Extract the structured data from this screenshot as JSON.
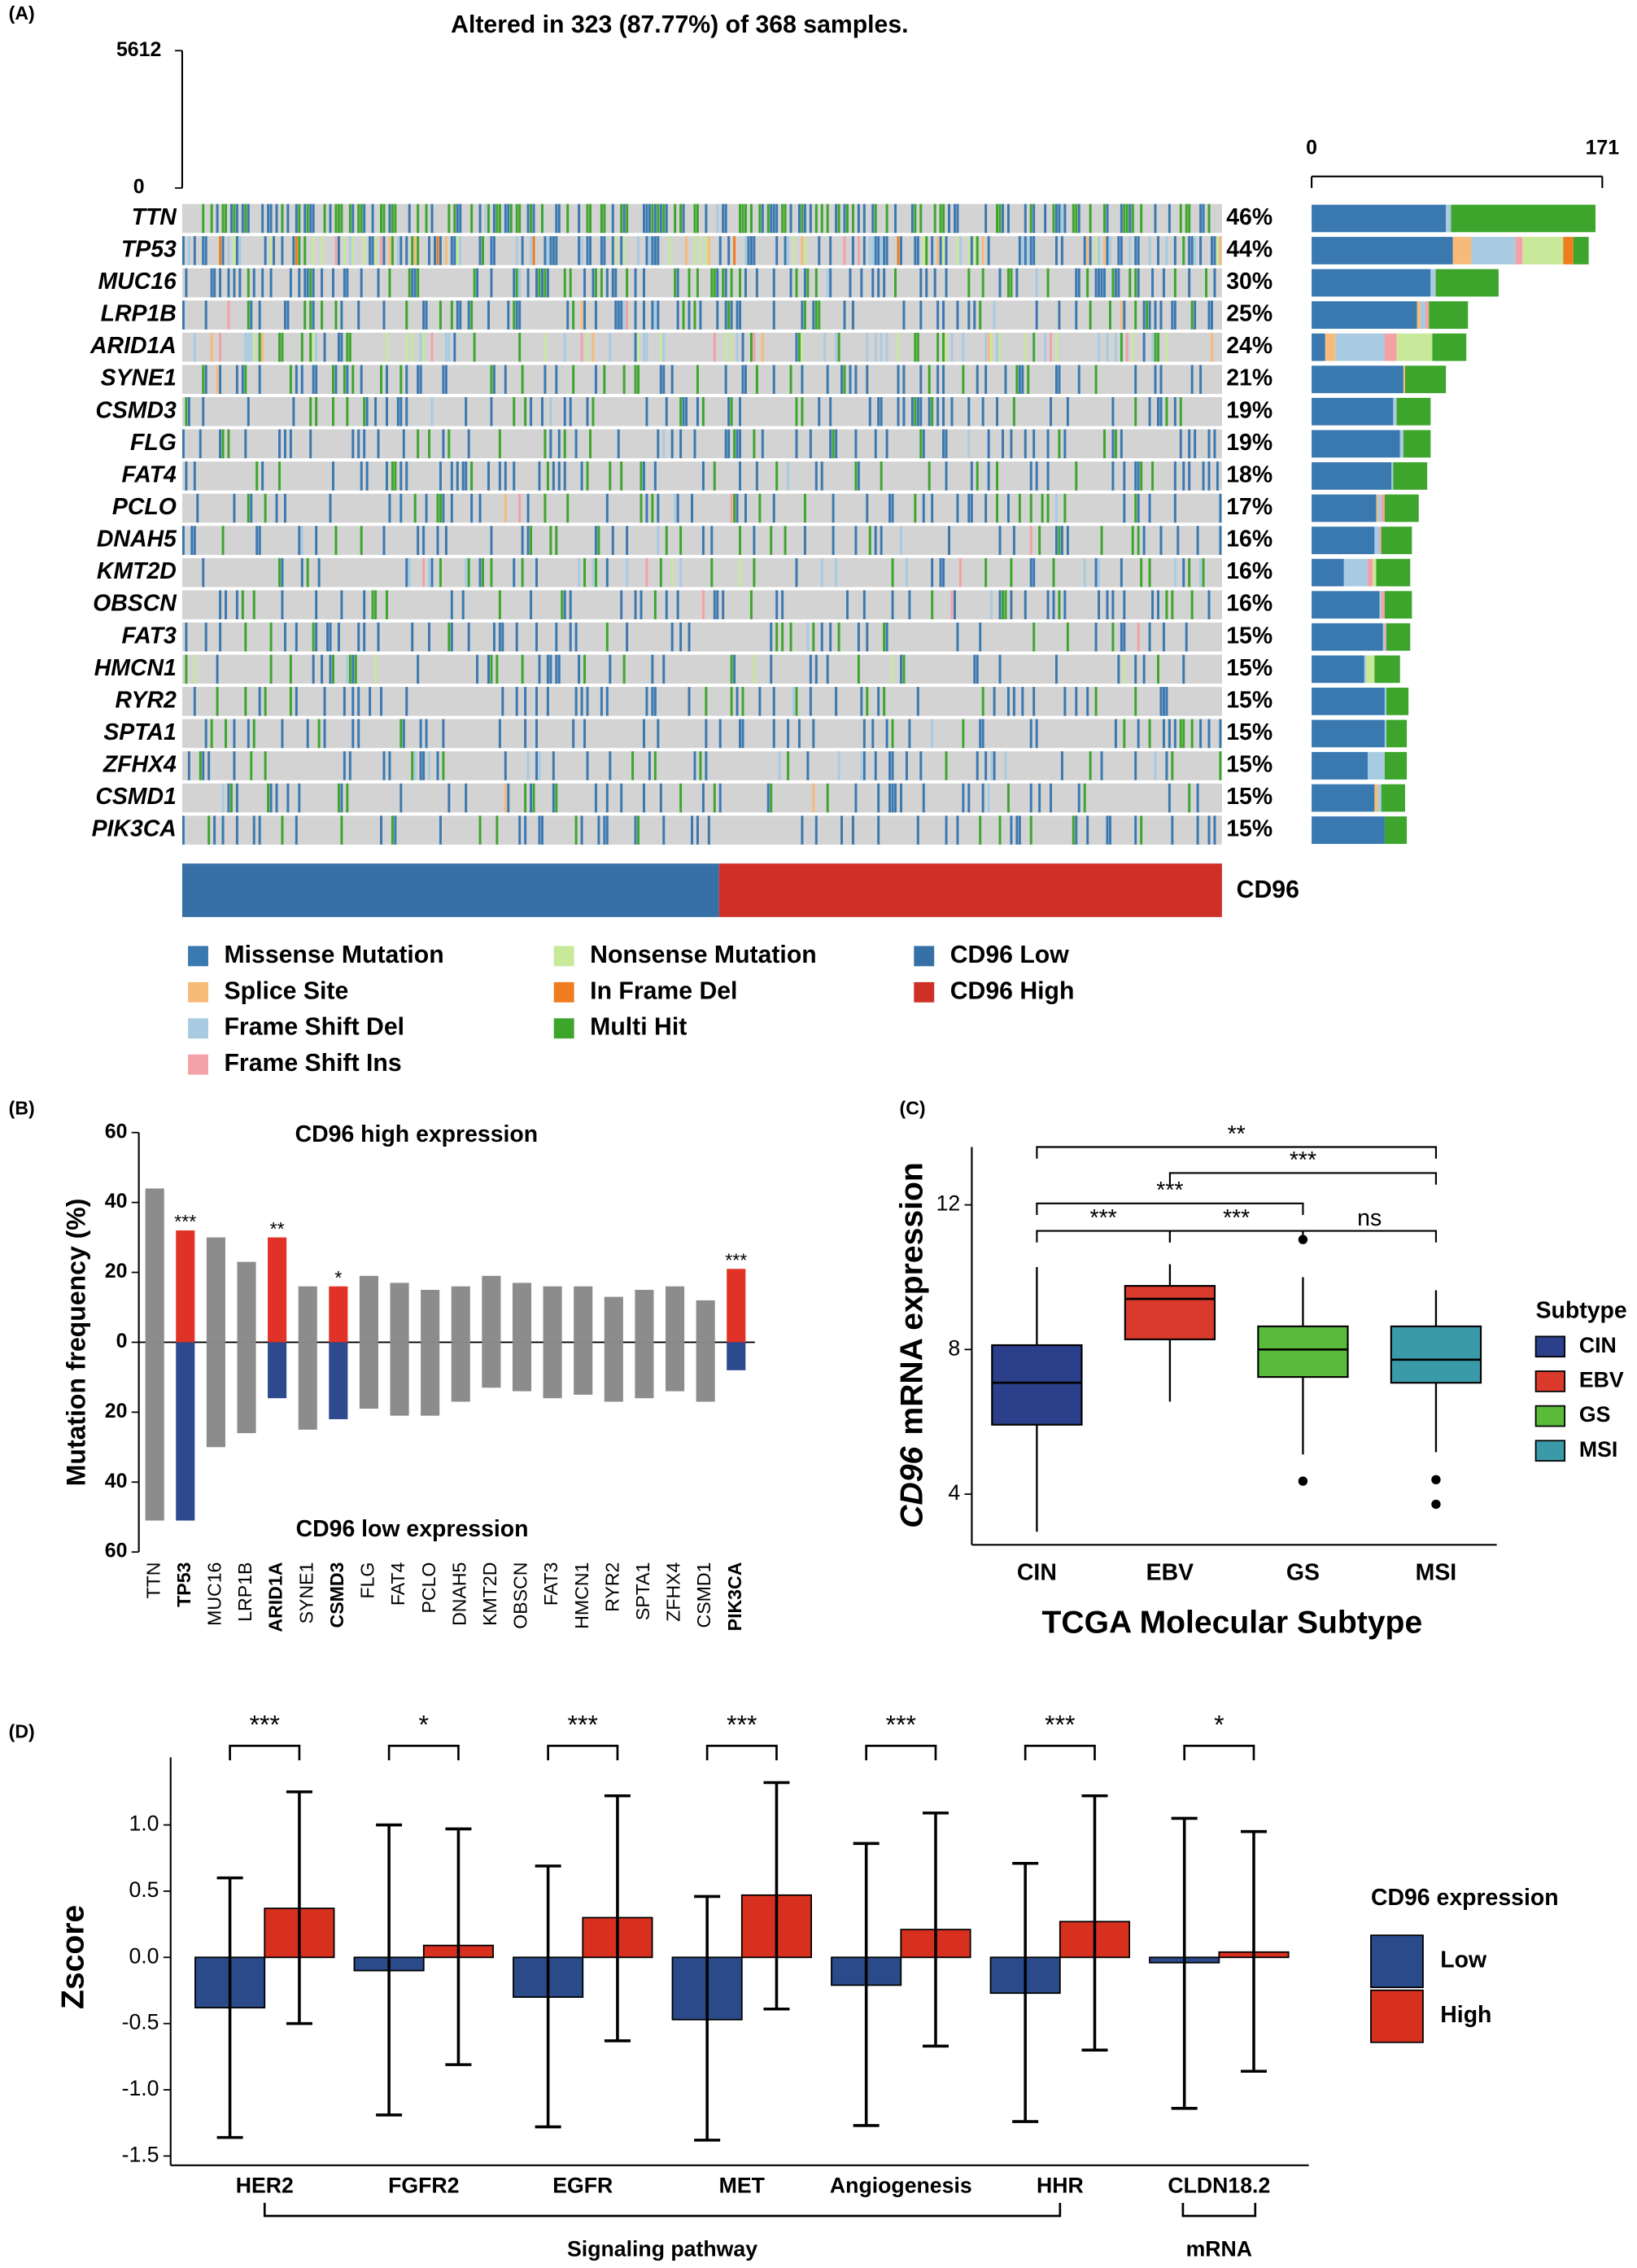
{
  "chart_data": [
    {
      "panel": "(A)",
      "type": "oncoplot",
      "title": "Altered in 323 (87.77%) of 368 samples.",
      "genes": [
        "TTN",
        "TP53",
        "MUC16",
        "LRP1B",
        "ARID1A",
        "SYNE1",
        "CSMD3",
        "FLG",
        "FAT4",
        "PCLO",
        "DNAH5",
        "KMT2D",
        "OBSCN",
        "FAT3",
        "HMCN1",
        "RYR2",
        "SPTA1",
        "ZFHX4",
        "CSMD1",
        "PIK3CA"
      ],
      "values": [
        46,
        44,
        30,
        25,
        24,
        21,
        19,
        19,
        18,
        17,
        16,
        16,
        16,
        15,
        15,
        15,
        15,
        15,
        15,
        15
      ],
      "value_labels": [
        "46%",
        "44%",
        "30%",
        "25%",
        "24%",
        "21%",
        "19%",
        "19%",
        "18%",
        "17%",
        "16%",
        "16%",
        "16%",
        "15%",
        "15%",
        "15%",
        "15%",
        "15%",
        "15%",
        "15%"
      ],
      "tmb_ylim": [
        0,
        5612
      ],
      "tmb_yticks": [
        0,
        5612
      ],
      "xlim": [
        0,
        171
      ],
      "xticks": [
        0,
        171
      ],
      "series": [
        {
          "name": "Missense Mutation",
          "color": "#3a78b0",
          "values": [
            79,
            83,
            70,
            62,
            8,
            54,
            48,
            52,
            47,
            38,
            37,
            19,
            40,
            42,
            31,
            43,
            43,
            33,
            37,
            43
          ]
        },
        {
          "name": "Splice Site",
          "color": "#f6bb78",
          "values": [
            0,
            11,
            0,
            2,
            6,
            1,
            0,
            0,
            0,
            1,
            0,
            0,
            0,
            0,
            0,
            0,
            0,
            0,
            2,
            0
          ]
        },
        {
          "name": "Frame Shift Del",
          "color": "#a8cbe2",
          "values": [
            3,
            26,
            3,
            3,
            29,
            0,
            2,
            2,
            1,
            2,
            3,
            14,
            1,
            1,
            1,
            1,
            1,
            10,
            2,
            0
          ]
        },
        {
          "name": "Frame Shift Ins",
          "color": "#f3a1a6",
          "values": [
            0,
            4,
            0,
            2,
            7,
            0,
            0,
            0,
            0,
            2,
            1,
            3,
            2,
            1,
            0,
            0,
            0,
            0,
            0,
            0
          ]
        },
        {
          "name": "Nonsense Mutation",
          "color": "#c8e89a",
          "values": [
            0,
            24,
            0,
            0,
            21,
            0,
            0,
            0,
            0,
            0,
            0,
            2,
            0,
            0,
            5,
            0,
            0,
            0,
            0,
            0
          ]
        },
        {
          "name": "In Frame Del",
          "color": "#ef7d20",
          "values": [
            0,
            6,
            0,
            0,
            0,
            0,
            0,
            0,
            0,
            0,
            0,
            0,
            0,
            0,
            0,
            0,
            0,
            0,
            0,
            0
          ]
        },
        {
          "name": "Multi Hit",
          "color": "#3da52c",
          "values": [
            85,
            9,
            37,
            23,
            20,
            24,
            20,
            16,
            20,
            20,
            18,
            20,
            16,
            14,
            15,
            13,
            12,
            13,
            14,
            13
          ]
        }
      ],
      "annotation": {
        "label": "CD96",
        "groups": [
          {
            "name": "CD96 Low",
            "color": "#3670a7",
            "n": 190
          },
          {
            "name": "CD96 High",
            "color": "#ce3027",
            "n": 178
          }
        ]
      }
    },
    {
      "panel": "(B)",
      "type": "mirror_bar",
      "y_label": "Mutation frequency (%)",
      "categories": [
        "TTN",
        "TP53",
        "MUC16",
        "LRP1B",
        "ARID1A",
        "SYNE1",
        "CSMD3",
        "FLG",
        "FAT4",
        "PCLO",
        "DNAH5",
        "KMT2D",
        "OBSCN",
        "FAT3",
        "HMCN1",
        "RYR2",
        "SPTA1",
        "ZFHX4",
        "CSMD1",
        "PIK3CA"
      ],
      "series": [
        {
          "name": "CD96 high expression",
          "color": "#e03226",
          "values": [
            44,
            32,
            30,
            23,
            30,
            16,
            16,
            19,
            17,
            15,
            16,
            19,
            17,
            16,
            16,
            13,
            15,
            16,
            12,
            21
          ]
        },
        {
          "name": "CD96 low expression",
          "color": "#2d4a8f",
          "values": [
            -51,
            -51,
            -30,
            -26,
            -16,
            -25,
            -22,
            -19,
            -21,
            -21,
            -17,
            -13,
            -14,
            -16,
            -15,
            -17,
            -16,
            -14,
            -17,
            -8
          ]
        }
      ],
      "other_color": "#8c8c8c",
      "significance": [
        null,
        "***",
        null,
        null,
        "**",
        null,
        "*",
        null,
        null,
        null,
        null,
        null,
        null,
        null,
        null,
        null,
        null,
        null,
        null,
        "***"
      ],
      "ylim": [
        -60,
        60
      ],
      "yticks": [
        60,
        40,
        20,
        0,
        {
          "value": -20,
          "label": "20"
        },
        {
          "value": -40,
          "label": "40"
        },
        {
          "value": -60,
          "label": "60"
        }
      ]
    },
    {
      "panel": "(C)",
      "type": "box",
      "y_label": [
        "CD96",
        "mRNA expression"
      ],
      "x_label": "TCGA Molecular Subtype",
      "categories": [
        "CIN",
        "EBV",
        "GS",
        "MSI"
      ],
      "colors": [
        "#2b3f8a",
        "#d93a2b",
        "#5aba3a",
        "#3a9aa8"
      ],
      "boxes": [
        {
          "low": 2.96,
          "q1": 5.92,
          "median": 7.08,
          "q3": 8.12,
          "high": 10.28,
          "outliers": []
        },
        {
          "low": 6.56,
          "q1": 8.28,
          "median": 9.4,
          "q3": 9.76,
          "high": 10.36,
          "outliers": []
        },
        {
          "low": 5.1,
          "q1": 7.24,
          "median": 8.0,
          "q3": 8.64,
          "high": 10.0,
          "outliers": [
            11.04,
            4.36
          ]
        },
        {
          "low": 5.16,
          "q1": 7.08,
          "median": 7.72,
          "q3": 8.64,
          "high": 9.64,
          "outliers": [
            4.4,
            3.72
          ]
        }
      ],
      "comparisons": [
        {
          "from": 0,
          "to": 3,
          "label": "**"
        },
        {
          "from": 1,
          "to": 3,
          "label": "***"
        },
        {
          "from": 0,
          "to": 2,
          "label": "***"
        },
        {
          "from": 0,
          "to": 1,
          "label": "***"
        },
        {
          "from": 1,
          "to": 2,
          "label": "***"
        },
        {
          "from": 2,
          "to": 3,
          "label": "ns"
        }
      ],
      "legend_title": "Subtype",
      "ylim": [
        2.6,
        13.6
      ],
      "yticks": [
        4,
        8,
        12
      ]
    },
    {
      "panel": "(D)",
      "type": "error_bar",
      "y_label": "Zscore",
      "categories": [
        "HER2",
        "FGFR2",
        "EGFR",
        "MET",
        "Angiogenesis",
        "HHR",
        "CLDN18.2"
      ],
      "series": [
        {
          "name": "Low",
          "color": "#2a4a8a",
          "values": [
            -0.38,
            -0.1,
            -0.3,
            -0.47,
            -0.21,
            -0.27,
            -0.04
          ],
          "upper": [
            0.6,
            1.0,
            0.69,
            0.46,
            0.86,
            0.71,
            1.05
          ],
          "lower": [
            -1.36,
            -1.19,
            -1.28,
            -1.38,
            -1.27,
            -1.24,
            -1.14
          ]
        },
        {
          "name": "High",
          "color": "#d8301f",
          "values": [
            0.37,
            0.09,
            0.3,
            0.47,
            0.21,
            0.27,
            0.04
          ],
          "upper": [
            1.25,
            0.97,
            1.22,
            1.32,
            1.09,
            1.22,
            0.95
          ],
          "lower": [
            -0.5,
            -0.81,
            -0.63,
            -0.39,
            -0.67,
            -0.7,
            -0.86
          ]
        }
      ],
      "significance": [
        "***",
        "*",
        "***",
        "***",
        "***",
        "***",
        "*"
      ],
      "groups": [
        {
          "label": "Signaling pathway",
          "from": 0,
          "to": 5
        },
        {
          "label": "mRNA",
          "from": 6,
          "to": 6
        }
      ],
      "legend_title": "CD96 expression",
      "ylim": [
        -1.57,
        1.51
      ],
      "yticks": [
        {
          "value": 1.0,
          "label": "1.0"
        },
        0.5,
        {
          "value": 0.0,
          "label": "0.0"
        },
        -0.5,
        {
          "value": -1.0,
          "label": "-1.0"
        },
        -1.5
      ]
    }
  ]
}
